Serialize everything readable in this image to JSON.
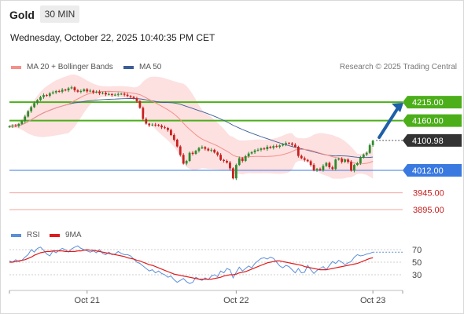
{
  "header": {
    "instrument": "Gold",
    "timeframe": "30 MIN",
    "datetime": "Wednesday, October 22, 2025 10:40:35 PM CET"
  },
  "legend": {
    "ma20_label": "MA 20 + Bollinger Bands",
    "ma50_label": "MA 50",
    "copyright": "Research © 2025 Trading Central",
    "rsi_label": "RSI",
    "rsi9_label": "9MA"
  },
  "colors": {
    "ma20": "#f4908a",
    "ma50": "#3c5d9a",
    "bollinger": "#fde0e0",
    "bullish": "#2e8b2e",
    "bearish": "#c8201e",
    "resistance": "#4caf1a",
    "support": "#3a7ae0",
    "lower_support": "#f4a39e",
    "current": "#333333",
    "arrow": "#1f5fa8",
    "rsi": "#5b8fd8",
    "rsi9": "#e01b1b"
  },
  "chart_data": [
    {
      "type": "candlestick",
      "name": "price",
      "ylim": [
        3860,
        4290
      ],
      "x_ticks": [
        "Oct 21",
        "Oct 22",
        "Oct 23"
      ],
      "levels": [
        {
          "value": 4215.0,
          "label": "4215.00",
          "kind": "resistance"
        },
        {
          "value": 4160.0,
          "label": "4160.00",
          "kind": "resistance"
        },
        {
          "value": 4100.98,
          "label": "4100.98",
          "kind": "current"
        },
        {
          "value": 4012.0,
          "label": "4012.00",
          "kind": "support"
        },
        {
          "value": 3945.0,
          "label": "3945.00",
          "kind": "lower_support"
        },
        {
          "value": 3895.0,
          "label": "3895.00",
          "kind": "lower_support"
        }
      ],
      "close": [
        4143,
        4145,
        4144,
        4150,
        4158,
        4172,
        4188,
        4200,
        4212,
        4221,
        4230,
        4236,
        4234,
        4241,
        4244,
        4248,
        4246,
        4252,
        4250,
        4256,
        4259,
        4250,
        4246,
        4248,
        4253,
        4247,
        4249,
        4244,
        4246,
        4241,
        4243,
        4238,
        4239,
        4236,
        4237,
        4239,
        4240,
        4237,
        4233,
        4230,
        4226,
        4218,
        4198,
        4165,
        4151,
        4146,
        4148,
        4147,
        4145,
        4140,
        4138,
        4132,
        4117,
        4103,
        4083,
        4058,
        4032,
        4040,
        4064,
        4061,
        4070,
        4078,
        4081,
        4076,
        4071,
        4073,
        4065,
        4058,
        4043,
        4040,
        4035,
        4018,
        3988,
        4028,
        4048,
        4040,
        4054,
        4062,
        4066,
        4071,
        4073,
        4077,
        4075,
        4082,
        4079,
        4084,
        4082,
        4086,
        4089,
        4093,
        4092,
        4088,
        4082,
        4055,
        4048,
        4043,
        4039,
        4028,
        4012,
        4016,
        4013,
        4025,
        4034,
        4021,
        4016,
        4044,
        4046,
        4037,
        4044,
        4037,
        4011,
        4028,
        4033,
        4050,
        4059,
        4064,
        4087,
        4100
      ]
    },
    {
      "type": "line",
      "name": "rsi",
      "ylim": [
        10,
        80
      ],
      "y_ticks": [
        70,
        50,
        30
      ],
      "series": [
        {
          "name": "RSI",
          "values": [
            52,
            50,
            54,
            51,
            53,
            58,
            62,
            70,
            66,
            72,
            74,
            69,
            63,
            60,
            68,
            65,
            69,
            72,
            70,
            66,
            71,
            74,
            76,
            72,
            70,
            68,
            66,
            68,
            65,
            70,
            64,
            62,
            66,
            62,
            63,
            67,
            64,
            62,
            62,
            60,
            55,
            50,
            48,
            44,
            40,
            36,
            38,
            33,
            36,
            32,
            30,
            26,
            28,
            22,
            18,
            21,
            24,
            19,
            16,
            18,
            26,
            23,
            21,
            25,
            22,
            28,
            30,
            27,
            36,
            33,
            40,
            38,
            25,
            34,
            42,
            36,
            40,
            44,
            41,
            48,
            52,
            56,
            57,
            55,
            58,
            56,
            50,
            44,
            41,
            45,
            43,
            38,
            33,
            40,
            33,
            34,
            45,
            38,
            32,
            37,
            40,
            43,
            38,
            45,
            51,
            48,
            53,
            50,
            46,
            49,
            51,
            58,
            62,
            60,
            61,
            63,
            64,
            66
          ]
        },
        {
          "name": "9MA",
          "values": [
            50,
            50,
            51,
            52,
            53,
            54,
            56,
            58,
            61,
            63,
            65,
            66,
            67,
            67,
            68,
            68,
            68,
            68,
            67,
            67,
            67,
            67,
            68,
            68,
            69,
            70,
            69,
            69,
            68,
            67,
            66,
            65,
            64,
            63,
            62,
            61,
            60,
            59,
            57,
            56,
            55,
            53,
            52,
            50,
            48,
            46,
            45,
            43,
            41,
            39,
            37,
            35,
            33,
            31,
            30,
            29,
            28,
            27,
            26,
            25,
            24,
            23,
            23,
            23,
            23,
            23,
            24,
            25,
            26,
            28,
            29,
            30,
            30,
            31,
            33,
            34,
            35,
            37,
            39,
            41,
            43,
            45,
            47,
            49,
            50,
            51,
            52,
            52,
            51,
            50,
            49,
            48,
            47,
            46,
            45,
            43,
            42,
            41,
            40,
            39,
            38,
            38,
            38,
            39,
            40,
            41,
            42,
            43,
            44,
            45,
            46,
            47,
            48,
            50,
            52,
            54,
            56,
            57
          ]
        }
      ]
    }
  ]
}
